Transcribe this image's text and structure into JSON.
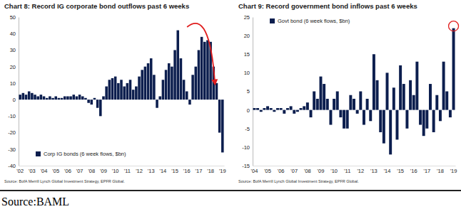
{
  "caption": "Source:BAML",
  "chart_data": [
    {
      "type": "bar",
      "title": "Chart 8: Record IG corporate bond outflows past 6 weeks",
      "source": "Source: BofA Merrill Lynch Global Investment Strategy, EPFR Global.",
      "categories": [
        "'02",
        null,
        null,
        null,
        "'03",
        null,
        null,
        null,
        "'04",
        null,
        null,
        null,
        "'05",
        null,
        null,
        null,
        "'06",
        null,
        null,
        null,
        "'07",
        null,
        null,
        null,
        "'08",
        null,
        null,
        null,
        "'09",
        null,
        null,
        null,
        "'10",
        null,
        null,
        null,
        "'11",
        null,
        null,
        null,
        "'12",
        null,
        null,
        null,
        "'13",
        null,
        null,
        null,
        "'14",
        null,
        null,
        null,
        "'15",
        null,
        null,
        null,
        "'16",
        null,
        null,
        null,
        "'17",
        null,
        null,
        null,
        "'18",
        null,
        null,
        null,
        "'19"
      ],
      "series": [
        {
          "name": "Corp IG bonds (6 week flows, $bn)",
          "color": "#0c1e4e",
          "values": [
            3,
            4,
            3,
            5,
            4,
            3,
            2,
            3,
            2,
            1,
            2,
            1,
            2,
            1,
            1,
            2,
            2,
            2,
            3,
            2,
            3,
            2,
            1,
            -2,
            -3,
            1,
            -5,
            -10,
            2,
            8,
            12,
            13,
            14,
            10,
            12,
            8,
            10,
            12,
            6,
            8,
            14,
            18,
            20,
            22,
            25,
            15,
            -5,
            2,
            12,
            18,
            22,
            20,
            30,
            42,
            25,
            12,
            5,
            -3,
            15,
            20,
            30,
            38,
            35,
            36,
            35,
            20,
            10,
            -20,
            -32
          ]
        }
      ],
      "ylim": [
        -40,
        50
      ],
      "yticks": [
        -40,
        -30,
        -20,
        -10,
        0,
        10,
        20,
        30,
        40,
        50
      ],
      "grid": false,
      "legend": "lower left"
    },
    {
      "type": "bar",
      "title": "Chart 9: Record government bond inflows past 6 weeks",
      "source": "Source: BofA Merrill Lynch Global Investment Strategy, EPFR Global.",
      "categories": [
        "'04",
        null,
        null,
        null,
        "'05",
        null,
        null,
        null,
        "'06",
        null,
        null,
        null,
        "'07",
        null,
        null,
        null,
        "'08",
        null,
        null,
        null,
        "'09",
        null,
        null,
        null,
        "'10",
        null,
        null,
        null,
        "'11",
        null,
        null,
        null,
        "'12",
        null,
        null,
        null,
        "'13",
        null,
        null,
        null,
        "'14",
        null,
        null,
        null,
        "'15",
        null,
        null,
        null,
        "'16",
        null,
        null,
        null,
        "'17",
        null,
        null,
        null,
        "'18",
        null,
        null,
        null,
        "'19"
      ],
      "series": [
        {
          "name": "Govt bond (6 week flows, $bn)",
          "color": "#0c1e4e",
          "values": [
            0.5,
            0.5,
            -0.5,
            0.5,
            1,
            0.5,
            -0.5,
            0.5,
            0.5,
            -1,
            0.5,
            1,
            -1,
            -0.5,
            0.5,
            1,
            2,
            -2,
            5,
            3,
            9,
            7,
            3,
            -4,
            3,
            5,
            -2,
            -5,
            -5,
            4,
            3,
            -1,
            5,
            -4,
            3,
            -3,
            15,
            8,
            -6,
            -9,
            10,
            -12,
            6,
            -8,
            12,
            7,
            -5,
            8,
            4,
            13,
            -4,
            -7,
            -5,
            7,
            -6,
            4,
            -3,
            13,
            5,
            -2,
            22
          ]
        }
      ],
      "ylim": [
        -15,
        25
      ],
      "yticks": [
        -15,
        -10,
        -5,
        0,
        5,
        10,
        15,
        20,
        25
      ],
      "grid": false,
      "legend": "upper left"
    }
  ]
}
